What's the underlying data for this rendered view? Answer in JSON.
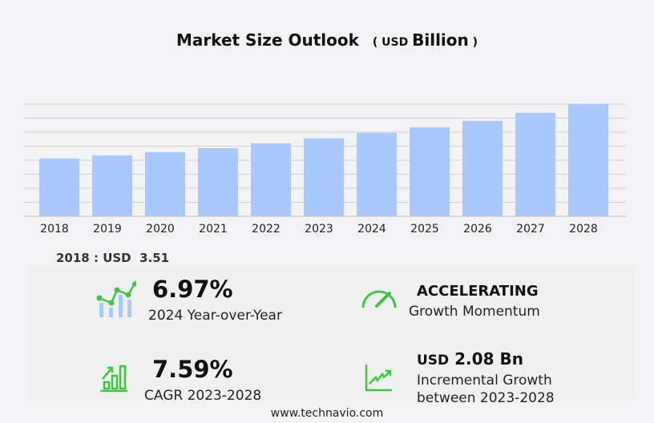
{
  "chart_data": {
    "type": "bar",
    "title": "Market Size Outlook",
    "unit_prefix": "USD",
    "unit": "Billion",
    "categories": [
      "2018",
      "2019",
      "2020",
      "2021",
      "2022",
      "2023",
      "2024",
      "2025",
      "2026",
      "2027",
      "2028"
    ],
    "values": [
      3.51,
      3.7,
      3.9,
      4.14,
      4.44,
      4.74,
      5.07,
      5.41,
      5.8,
      6.29,
      6.82
    ],
    "ylim": [
      0,
      6.82
    ],
    "grid": true,
    "bar_color": "#a9c8fc"
  },
  "base_year": {
    "label": "2018 : USD",
    "value": "3.51"
  },
  "kpis": {
    "yoy": {
      "value": "6.97%",
      "label": "2024 Year-over-Year"
    },
    "momentum": {
      "value": "ACCELERATING",
      "label": "Growth Momentum"
    },
    "cagr": {
      "value": "7.59%",
      "label": "CAGR 2023-2028"
    },
    "incremental": {
      "prefix": "USD",
      "value": "2.08 Bn",
      "label1": "Incremental Growth",
      "label2": "between 2023-2028"
    }
  },
  "accent_color": "#3cc83c",
  "footer": "www.technavio.com"
}
